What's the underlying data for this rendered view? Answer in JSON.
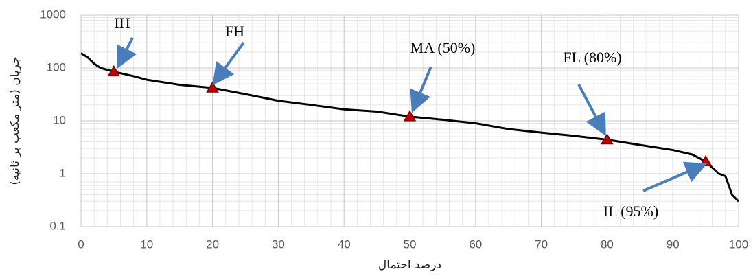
{
  "chart_data": {
    "type": "line",
    "x_label": "درصد احتمال",
    "y_label": "جریان (متر مکعب بر ثانیه)",
    "x": [
      0,
      1,
      2,
      3,
      5,
      8,
      10,
      15,
      20,
      25,
      30,
      35,
      40,
      45,
      50,
      55,
      60,
      65,
      70,
      75,
      80,
      85,
      90,
      93,
      95,
      97,
      98,
      99,
      100
    ],
    "values": [
      190,
      160,
      120,
      100,
      85,
      70,
      60,
      48,
      42,
      32,
      24,
      20,
      16.5,
      15,
      12,
      10.5,
      9,
      7,
      6,
      5.2,
      4.4,
      3.5,
      2.8,
      2.3,
      1.7,
      1.0,
      0.9,
      0.4,
      0.3
    ],
    "color": "#000000",
    "markers": {
      "x": [
        5,
        20,
        50,
        80,
        95
      ],
      "values": [
        85,
        42,
        12,
        4.4,
        1.7
      ],
      "labels": [
        "IH",
        "FH",
        "MA (50%)",
        "FL (80%)",
        "IL (95%)"
      ],
      "color": "#c00000"
    },
    "xlim": [
      0,
      100
    ],
    "xticks": [
      0,
      10,
      20,
      30,
      40,
      50,
      60,
      70,
      80,
      90,
      100
    ],
    "ylim": [
      0.1,
      1000
    ],
    "yticks": [
      0.1,
      1,
      10,
      100,
      1000
    ],
    "log_y": true,
    "grid": true
  }
}
